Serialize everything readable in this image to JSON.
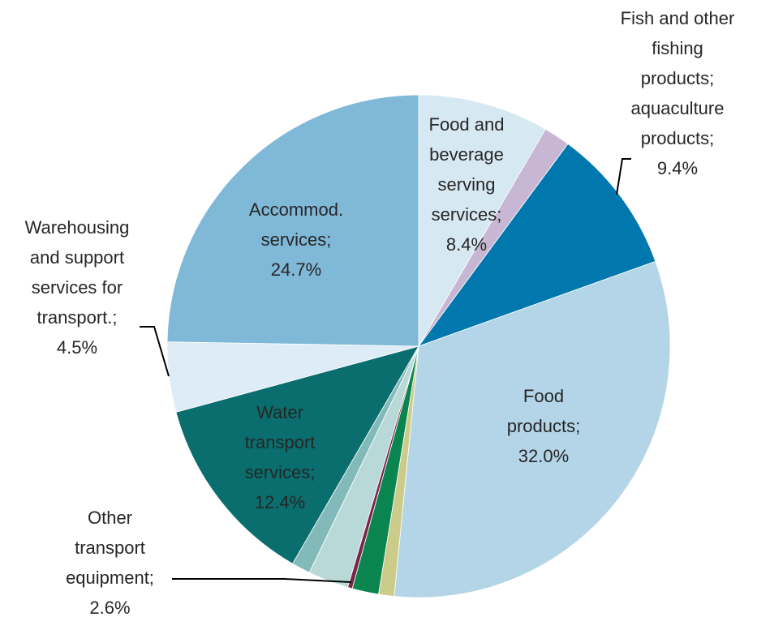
{
  "chart_data": {
    "type": "pie",
    "categories": [
      "Food and beverage serving services;",
      null,
      "Fish and other fishing products; aquaculture products;",
      "Food products;",
      null,
      null,
      null,
      "Other transport equipment;",
      null,
      "Water transport services;",
      "Warehousing and support services for transport.;",
      "Accommod. services;"
    ],
    "values": [
      8.4,
      1.7,
      9.4,
      32.0,
      1.0,
      1.7,
      0.3,
      2.6,
      1.2,
      12.4,
      4.5,
      24.7
    ],
    "value_labels": [
      "8.4%",
      null,
      "9.4%",
      "32.0%",
      null,
      null,
      null,
      "2.6%",
      null,
      "12.4%",
      "4.5%",
      "24.7%"
    ],
    "colors": [
      "#d6e8f2",
      "#c8b7d4",
      "#0077ad",
      "#b3d5e7",
      "#cccc8a",
      "#0b8550",
      "#7a2848",
      "#b9d9d9",
      "#82baba",
      "#0a6e6e",
      "#ddecf6",
      "#80b9d7"
    ]
  }
}
